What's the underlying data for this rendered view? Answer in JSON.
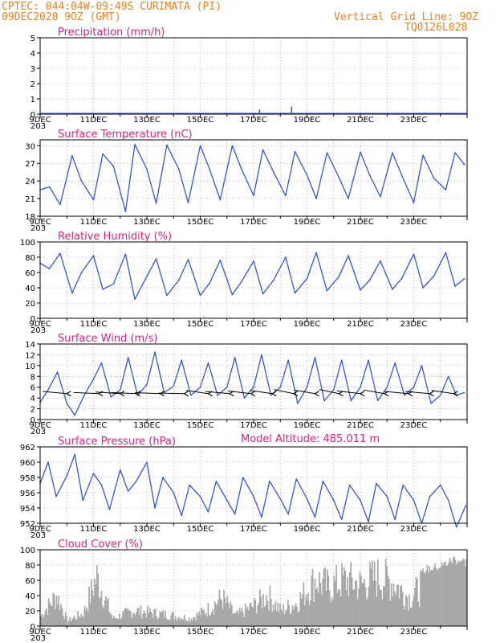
{
  "header": {
    "line1": "CPTEC:    044:04W-09:49S   CURIMATA (PI)",
    "line2": "09DEC2020 9OZ (GMT)",
    "grid_note": "Vertical Grid Line: 9OZ",
    "code": "TQ0126L028"
  },
  "colors": {
    "series": "#3355dd",
    "cloud": "#a8a8a8",
    "title": "#e0207a",
    "header": "#f08020",
    "wind": "#000000"
  },
  "x_dates": [
    "9DEC",
    "11DEC",
    "13DEC",
    "15DEC",
    "17DEC",
    "19DEC",
    "21DEC",
    "23DEC"
  ],
  "x_stub": "203",
  "model_altitude": "Model Altitude: 485.011 m",
  "chart_data": [
    {
      "type": "bar",
      "title": "Precipitation (mm/h)",
      "ylim": [
        0,
        5
      ],
      "yticks": [
        0,
        1,
        2,
        3,
        4,
        5
      ],
      "bars": [
        [
          8.2,
          0.3
        ],
        [
          9.4,
          0.5
        ],
        [
          14.4,
          0.1
        ],
        [
          22.1,
          0.7
        ]
      ]
    },
    {
      "type": "line",
      "title": "Surface Temperature (nC)",
      "ylim": [
        18,
        31
      ],
      "yticks": [
        18,
        21,
        24,
        27,
        30
      ],
      "x": [
        0,
        0.35,
        0.75,
        1.2,
        1.55,
        2.0,
        2.35,
        2.75,
        3.2,
        3.55,
        4.0,
        4.35,
        4.75,
        5.2,
        5.55,
        6.0,
        6.35,
        6.75,
        7.2,
        7.55,
        8.0,
        8.35,
        8.75,
        9.2,
        9.55,
        10.0,
        10.35,
        10.75,
        11.2,
        11.55,
        12.0,
        12.35,
        12.75,
        13.2,
        13.55,
        14.0,
        14.35,
        14.75,
        15.2,
        15.55,
        15.9
      ],
      "values": [
        22.5,
        23.0,
        20.0,
        28.3,
        24.0,
        20.8,
        28.6,
        26.5,
        18.8,
        30.2,
        26.0,
        20.2,
        30.1,
        26.0,
        20.3,
        30.0,
        26.0,
        20.8,
        30.0,
        26.0,
        21.5,
        29.3,
        25.5,
        21.5,
        29.0,
        25.0,
        21.0,
        28.8,
        24.6,
        21.0,
        28.9,
        25.0,
        21.3,
        28.8,
        25.0,
        20.3,
        28.4,
        24.5,
        22.5,
        28.8,
        26.8
      ]
    },
    {
      "type": "line",
      "title": "Relative Humidity (%)",
      "ylim": [
        0,
        100
      ],
      "yticks": [
        0,
        20,
        40,
        60,
        80,
        100
      ],
      "x": [
        0,
        0.35,
        0.75,
        1.2,
        1.55,
        2.0,
        2.35,
        2.75,
        3.2,
        3.55,
        4.0,
        4.35,
        4.75,
        5.2,
        5.55,
        6.0,
        6.35,
        6.75,
        7.2,
        7.55,
        8.0,
        8.35,
        8.75,
        9.2,
        9.55,
        10.0,
        10.35,
        10.75,
        11.2,
        11.55,
        12.0,
        12.35,
        12.75,
        13.2,
        13.55,
        14.0,
        14.35,
        14.75,
        15.2,
        15.55,
        15.9
      ],
      "values": [
        72,
        65,
        85,
        33,
        60,
        82,
        38,
        45,
        84,
        25,
        55,
        78,
        30,
        50,
        77,
        30,
        46,
        76,
        31,
        48,
        75,
        32,
        50,
        80,
        33,
        52,
        86,
        36,
        55,
        82,
        37,
        50,
        75,
        38,
        52,
        84,
        40,
        55,
        86,
        42,
        52
      ]
    },
    {
      "type": "line",
      "title": "Surface Wind (m/s)",
      "ylim": [
        0,
        14
      ],
      "yticks": [
        0,
        2,
        4,
        6,
        8,
        10,
        12,
        14
      ],
      "x": [
        0,
        0.3,
        0.65,
        1.0,
        1.3,
        1.65,
        2.0,
        2.3,
        2.65,
        3.0,
        3.3,
        3.65,
        4.0,
        4.3,
        4.65,
        5.0,
        5.3,
        5.65,
        6.0,
        6.3,
        6.65,
        7.0,
        7.3,
        7.65,
        8.0,
        8.3,
        8.65,
        9.0,
        9.3,
        9.65,
        10.0,
        10.3,
        10.65,
        11.0,
        11.3,
        11.65,
        12.0,
        12.3,
        12.65,
        13.0,
        13.3,
        13.65,
        14.0,
        14.3,
        14.65,
        15.0,
        15.3,
        15.6,
        15.9
      ],
      "values": [
        3.2,
        5.5,
        8.8,
        3.0,
        0.8,
        4.5,
        7.5,
        10.5,
        4.2,
        5.5,
        11.5,
        4.5,
        6.5,
        12.5,
        5.0,
        6.2,
        11.0,
        4.5,
        6.0,
        10.5,
        4.5,
        6.0,
        11.5,
        4.0,
        6.0,
        12.0,
        4.5,
        6.0,
        11.0,
        3.0,
        6.0,
        11.5,
        3.5,
        5.5,
        11.0,
        3.5,
        6.0,
        11.0,
        3.5,
        6.0,
        10.5,
        4.5,
        6.0,
        10.0,
        3.0,
        4.5,
        8.0,
        4.5,
        5.0
      ],
      "barbs": [
        [
          1.0,
          250
        ],
        [
          2.2,
          260
        ],
        [
          3.0,
          255
        ],
        [
          3.6,
          260
        ],
        [
          4.5,
          262
        ],
        [
          5.4,
          265
        ],
        [
          6.3,
          240
        ],
        [
          7.1,
          250
        ],
        [
          7.9,
          245
        ],
        [
          8.7,
          240
        ],
        [
          9.5,
          230
        ],
        [
          10.3,
          235
        ],
        [
          11.2,
          230
        ],
        [
          12.0,
          245
        ],
        [
          12.9,
          235
        ],
        [
          13.8,
          250
        ],
        [
          14.6,
          250
        ],
        [
          15.5,
          240
        ]
      ]
    },
    {
      "type": "line",
      "title": "Surface Pressure (hPa)",
      "ylim": [
        952,
        962
      ],
      "yticks": [
        952,
        954,
        956,
        958,
        960,
        962
      ],
      "x": [
        0,
        0.3,
        0.6,
        1.0,
        1.3,
        1.6,
        2.0,
        2.3,
        2.6,
        3.0,
        3.3,
        3.6,
        4.0,
        4.3,
        4.6,
        5.0,
        5.3,
        5.6,
        6.0,
        6.3,
        6.6,
        7.0,
        7.3,
        7.6,
        8.0,
        8.3,
        8.6,
        9.0,
        9.3,
        9.6,
        10.0,
        10.3,
        10.6,
        11.0,
        11.3,
        11.6,
        12.0,
        12.3,
        12.6,
        13.0,
        13.3,
        13.6,
        14.0,
        14.3,
        14.6,
        15.0,
        15.3,
        15.6,
        15.95
      ],
      "values": [
        957.2,
        960.0,
        955.5,
        958.2,
        961.0,
        955.0,
        958.5,
        957.0,
        953.8,
        959.0,
        956.2,
        957.5,
        960.0,
        954.0,
        958.0,
        956.0,
        953.0,
        957.0,
        955.5,
        953.5,
        957.5,
        955.0,
        953.2,
        958.0,
        955.5,
        952.8,
        957.5,
        955.2,
        953.2,
        957.8,
        955.2,
        952.8,
        957.5,
        955.0,
        952.5,
        957.0,
        955.0,
        952.2,
        957.2,
        955.5,
        952.5,
        957.0,
        955.0,
        952.0,
        955.5,
        957.0,
        955.0,
        951.5,
        954.3
      ]
    },
    {
      "type": "bar",
      "title": "Cloud Cover (%)",
      "ylim": [
        0,
        100
      ],
      "yticks": [
        0,
        20,
        40,
        60,
        80,
        100
      ]
    }
  ]
}
